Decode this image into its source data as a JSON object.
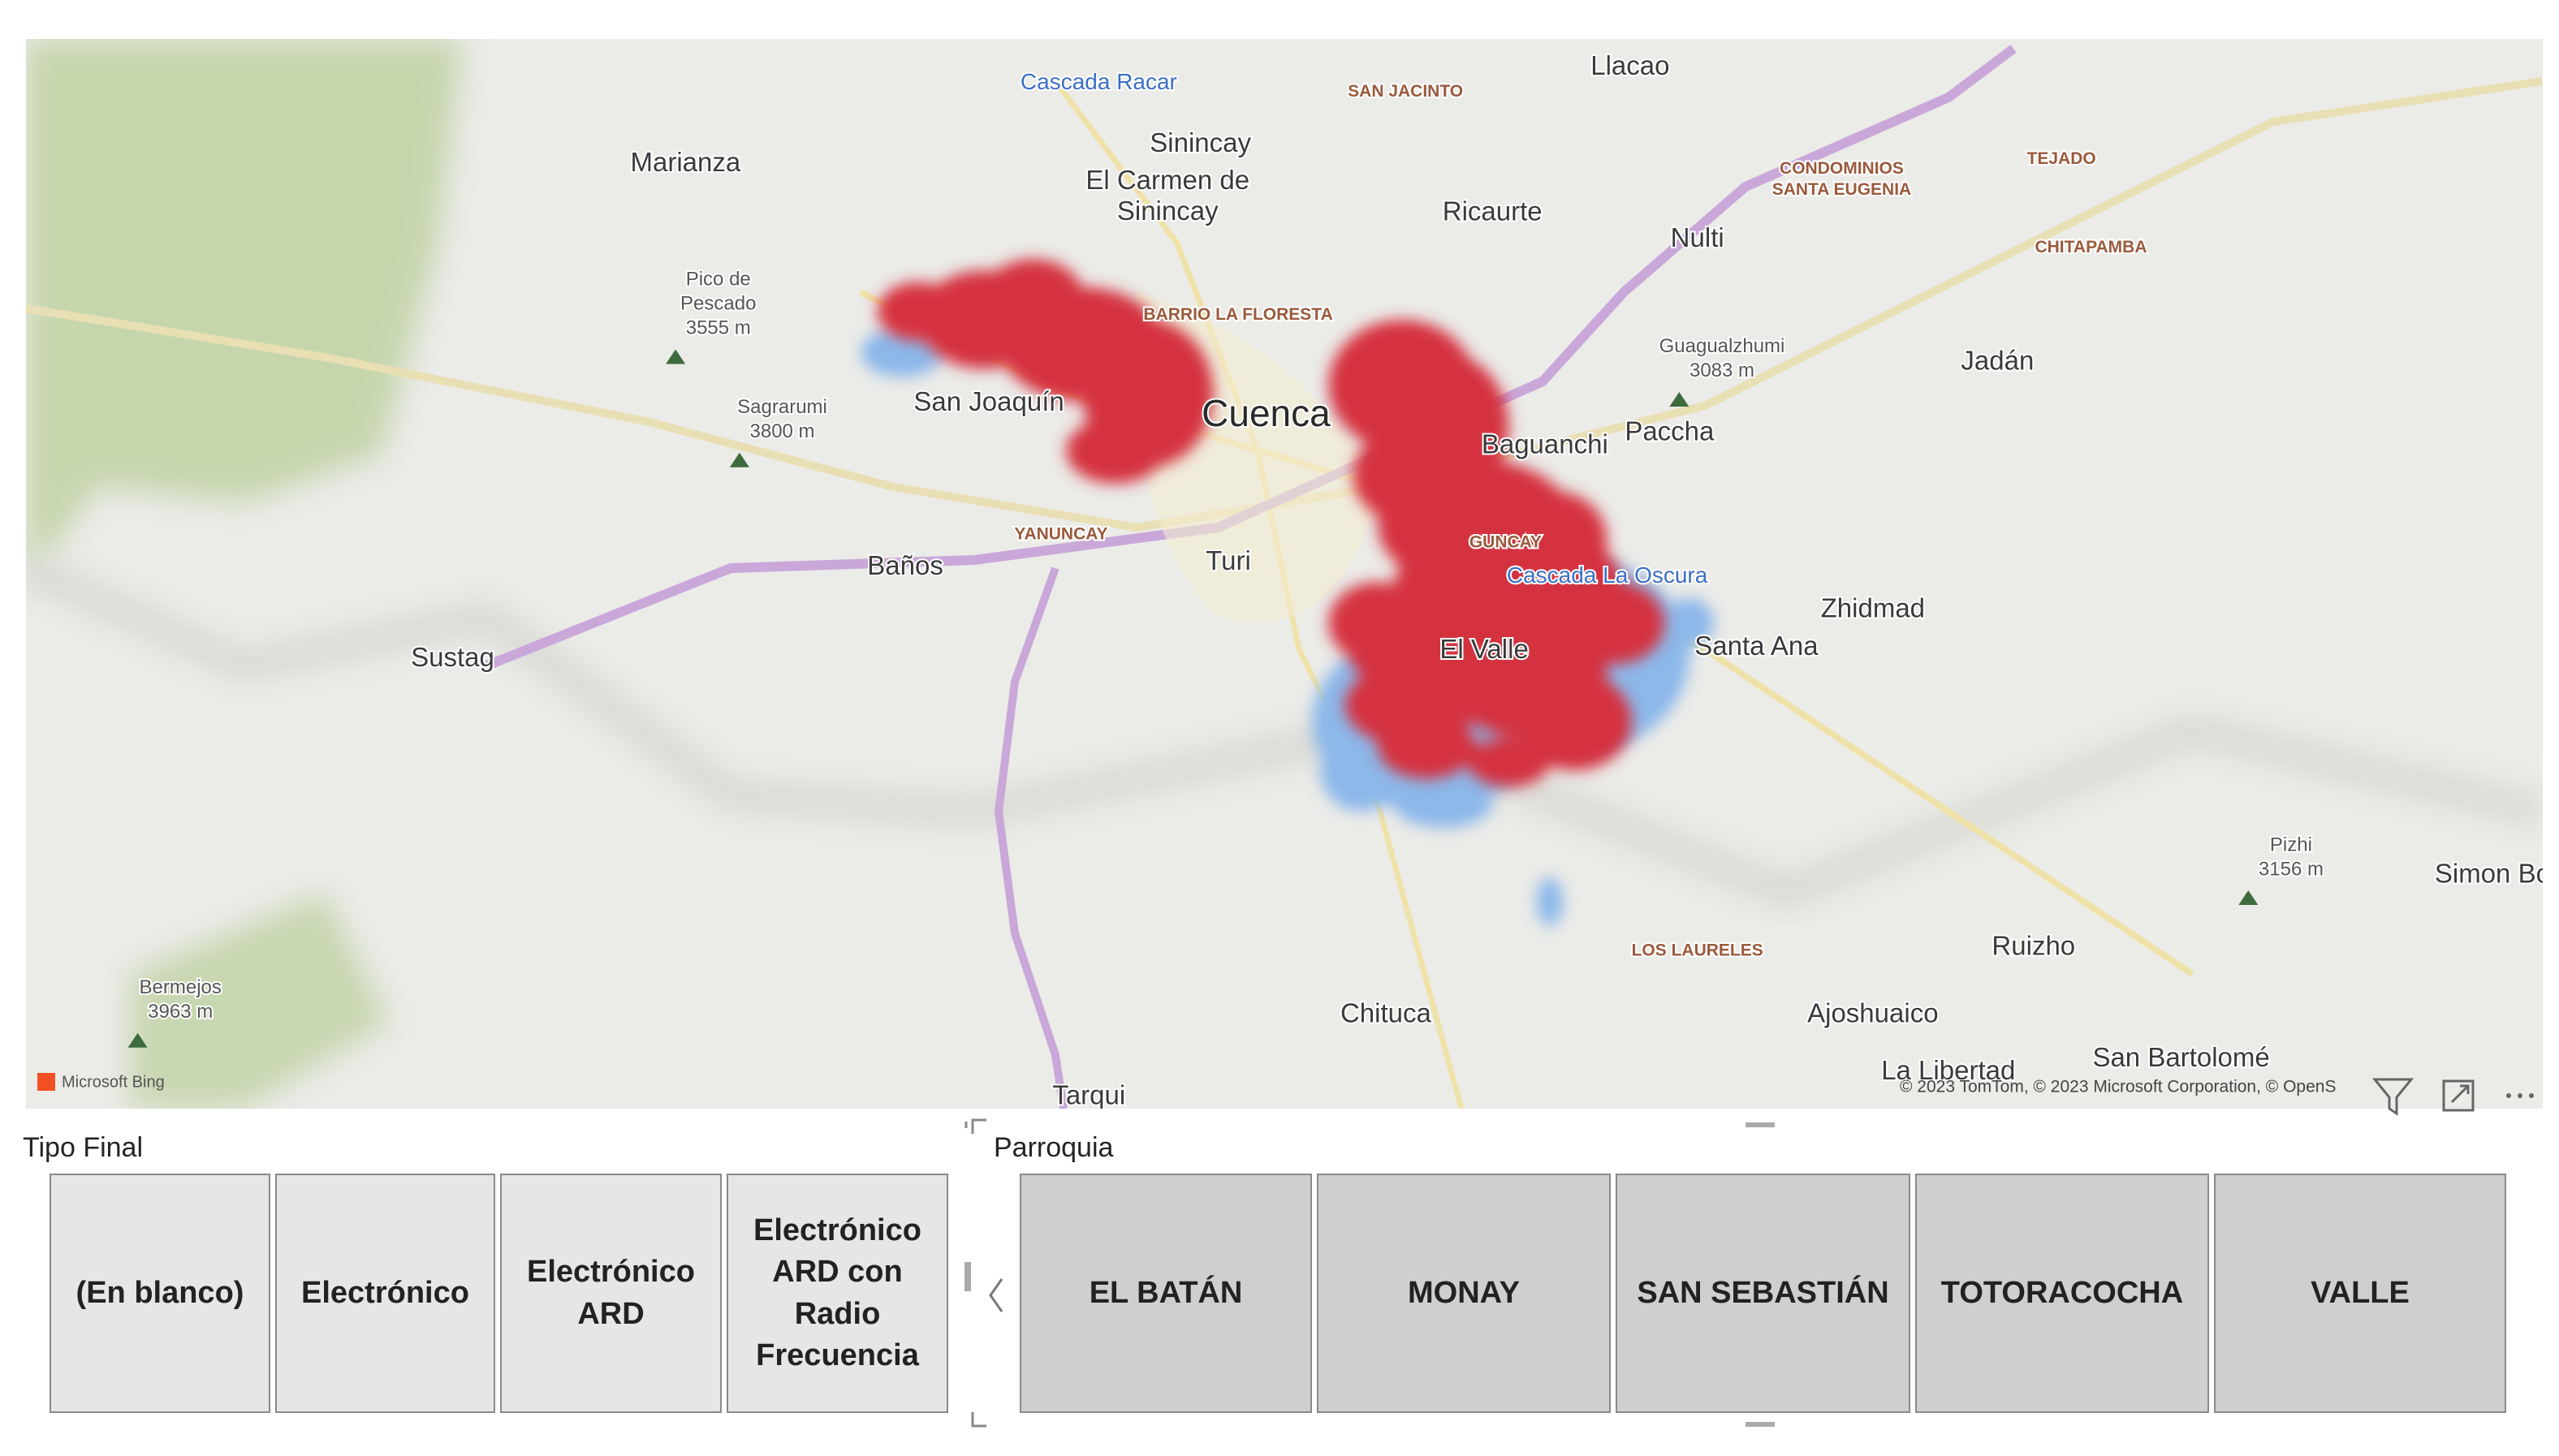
{
  "map": {
    "labels": [
      [
        "Cascada Racar"
      ],
      [
        "SAN JACINTO"
      ],
      [
        "Llacao"
      ],
      [
        "Marianza"
      ],
      [
        "Sinincay"
      ],
      [
        "El Carmen de",
        "Sinincay"
      ],
      [
        "Ricaurte"
      ],
      [
        "Nulti"
      ],
      [
        "CONDOMINIOS",
        "SANTA EUGENIA"
      ],
      [
        "TEJADO"
      ],
      [
        "CHITAPAMBA"
      ],
      [
        "Pico de",
        "Pescado",
        "3555 m"
      ],
      [
        "BARRIO LA FLORESTA"
      ],
      [
        "Guagualzhumi",
        "3083 m"
      ],
      [
        "Jadán"
      ],
      [
        "San Joaquín"
      ],
      [
        "Cuenca"
      ],
      [
        "Sagrarumi",
        "3800 m"
      ],
      [
        "Baguanchi"
      ],
      [
        "Paccha"
      ],
      [
        "YANUNCAY"
      ],
      [
        "GUNCAY"
      ],
      [
        "Baños"
      ],
      [
        "Turi"
      ],
      [
        "Cascada La Oscura"
      ],
      [
        "Zhidmad"
      ],
      [
        "El Valle"
      ],
      [
        "Santa Ana"
      ],
      [
        "Sustag"
      ],
      [
        "LOS LAURELES"
      ],
      [
        "Ruizho"
      ],
      [
        "Pizhi",
        "3156 m"
      ],
      [
        "Simon Bo"
      ],
      [
        "Bermejos",
        "3963 m"
      ],
      [
        "Chituca"
      ],
      [
        "Ajoshuaico"
      ],
      [
        "San Bartolomé"
      ],
      [
        "La Libertad"
      ],
      [
        "Tarqui"
      ]
    ],
    "provider": "Microsoft Bing",
    "copyright": "© 2023 TomTom, © 2023 Microsoft Corporation, © OpenS"
  },
  "slicers": [
    {
      "title": "Tipo Final",
      "items": [
        "(En blanco)",
        "Electrónico",
        "Electrónico ARD",
        "Electrónico ARD con Radio Frecuencia"
      ]
    },
    {
      "title": "Parroquia",
      "items": [
        "EL BATÁN",
        "MONAY",
        "SAN SEBASTIÁN",
        "TOTORACOCHA",
        "VALLE"
      ]
    }
  ]
}
